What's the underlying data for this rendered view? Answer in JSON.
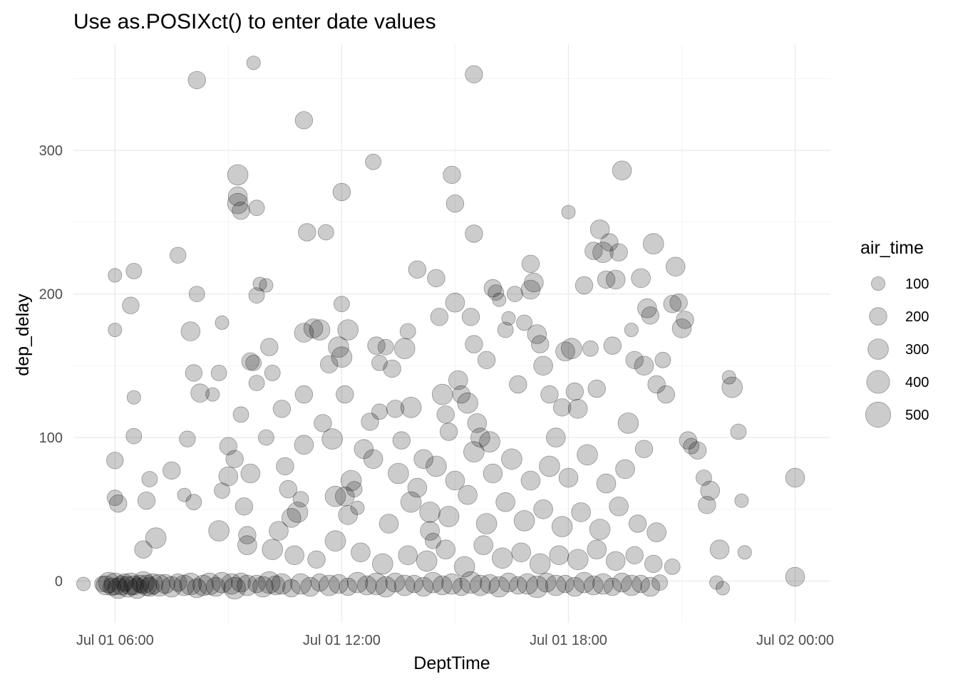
{
  "chart_data": {
    "type": "scatter",
    "title": "Use as.POSIXct() to enter date values",
    "xlabel": "DeptTime",
    "ylabel": "dep_delay",
    "size_legend": {
      "title": "air_time",
      "breaks": [
        100,
        200,
        300,
        400,
        500
      ]
    },
    "x_ticks": [
      "Jul 01 06:00",
      "Jul 01 12:00",
      "Jul 01 18:00",
      "Jul 02 00:00"
    ],
    "y_ticks": [
      0,
      100,
      200,
      300
    ],
    "xlim": [
      "2013-07-01 04:54",
      "2013-07-02 00:56"
    ],
    "ylim": [
      -29,
      374
    ],
    "grid": true,
    "legend_position": "right",
    "point_color": "#000000",
    "x_unit": "time of day (HH:MM, 2013-07-01; values >= 24:00 fall on 2013-07-02)",
    "points": [
      [
        "05:10",
        -2,
        100
      ],
      [
        "05:40",
        -2,
        150
      ],
      [
        "05:45",
        -3,
        250
      ],
      [
        "05:50",
        -1,
        300
      ],
      [
        "05:55",
        -4,
        200
      ],
      [
        "06:00",
        -2,
        350
      ],
      [
        "06:05",
        -5,
        300
      ],
      [
        "06:10",
        -3,
        250
      ],
      [
        "06:15",
        -1,
        200
      ],
      [
        "06:20",
        -4,
        300
      ],
      [
        "06:25",
        -2,
        350
      ],
      [
        "06:30",
        -3,
        250
      ],
      [
        "06:35",
        -5,
        300
      ],
      [
        "06:40",
        -2,
        200
      ],
      [
        "06:45",
        -1,
        350
      ],
      [
        "06:50",
        -3,
        300
      ],
      [
        "06:55",
        -4,
        250
      ],
      [
        "07:00",
        -2,
        300
      ],
      [
        "07:10",
        -3,
        350
      ],
      [
        "07:20",
        -2,
        250
      ],
      [
        "07:30",
        -4,
        300
      ],
      [
        "07:40",
        -1,
        200
      ],
      [
        "07:50",
        -3,
        300
      ],
      [
        "08:00",
        -2,
        350
      ],
      [
        "08:10",
        -5,
        250
      ],
      [
        "08:20",
        -3,
        300
      ],
      [
        "08:30",
        -2,
        350
      ],
      [
        "08:40",
        -4,
        250
      ],
      [
        "08:50",
        -1,
        300
      ],
      [
        "06:00",
        213,
        100
      ],
      [
        "06:00",
        175,
        100
      ],
      [
        "06:00",
        84,
        180
      ],
      [
        "06:00",
        58,
        150
      ],
      [
        "06:05",
        54,
        200
      ],
      [
        "06:30",
        216,
        150
      ],
      [
        "06:25",
        192,
        180
      ],
      [
        "06:30",
        128,
        100
      ],
      [
        "06:30",
        101,
        150
      ],
      [
        "06:55",
        71,
        150
      ],
      [
        "06:50",
        56,
        200
      ],
      [
        "07:05",
        30,
        300
      ],
      [
        "06:45",
        22,
        200
      ],
      [
        "07:30",
        77,
        200
      ],
      [
        "07:40",
        227,
        160
      ],
      [
        "08:10",
        349,
        200
      ],
      [
        "08:10",
        200,
        150
      ],
      [
        "08:00",
        174,
        250
      ],
      [
        "08:05",
        145,
        180
      ],
      [
        "08:15",
        131,
        230
      ],
      [
        "07:55",
        99,
        160
      ],
      [
        "08:05",
        55,
        150
      ],
      [
        "07:50",
        60,
        100
      ],
      [
        "08:45",
        145,
        150
      ],
      [
        "08:50",
        180,
        100
      ],
      [
        "08:35",
        130,
        100
      ],
      [
        "08:50",
        63,
        150
      ],
      [
        "08:45",
        35,
        300
      ],
      [
        "09:00",
        73,
        250
      ],
      [
        "09:00",
        94,
        200
      ],
      [
        "09:15",
        283,
        300
      ],
      [
        "09:15",
        268,
        250
      ],
      [
        "09:15",
        263,
        300
      ],
      [
        "09:20",
        258,
        200
      ],
      [
        "09:20",
        116,
        150
      ],
      [
        "09:30",
        32,
        200
      ],
      [
        "09:25",
        52,
        200
      ],
      [
        "09:35",
        153,
        200
      ],
      [
        "09:40",
        152,
        150
      ],
      [
        "09:45",
        138,
        150
      ],
      [
        "09:45",
        199,
        150
      ],
      [
        "09:50",
        207,
        100
      ],
      [
        "09:45",
        260,
        150
      ],
      [
        "09:40",
        361,
        100
      ],
      [
        "10:00",
        206,
        100
      ],
      [
        "10:05",
        163,
        200
      ],
      [
        "10:10",
        145,
        150
      ],
      [
        "10:25",
        120,
        200
      ],
      [
        "10:35",
        64,
        200
      ],
      [
        "10:20",
        35,
        250
      ],
      [
        "10:40",
        44,
        250
      ],
      [
        "10:50",
        48,
        300
      ],
      [
        "10:55",
        57,
        150
      ],
      [
        "11:00",
        130,
        200
      ],
      [
        "11:00",
        173,
        250
      ],
      [
        "11:05",
        243,
        200
      ],
      [
        "11:00",
        321,
        200
      ],
      [
        "11:15",
        176,
        250
      ],
      [
        "11:25",
        175,
        300
      ],
      [
        "11:35",
        243,
        150
      ],
      [
        "11:40",
        151,
        200
      ],
      [
        "11:45",
        99,
        300
      ],
      [
        "11:50",
        59,
        300
      ],
      [
        "11:55",
        163,
        300
      ],
      [
        "12:00",
        156,
        300
      ],
      [
        "12:00",
        193,
        150
      ],
      [
        "12:00",
        271,
        200
      ],
      [
        "12:05",
        130,
        200
      ],
      [
        "12:10",
        175,
        300
      ],
      [
        "12:05",
        59,
        250
      ],
      [
        "12:10",
        46,
        250
      ],
      [
        "12:20",
        64,
        150
      ],
      [
        "12:25",
        51,
        100
      ],
      [
        "12:35",
        92,
        250
      ],
      [
        "12:45",
        111,
        200
      ],
      [
        "12:50",
        292,
        150
      ],
      [
        "12:55",
        164,
        200
      ],
      [
        "13:00",
        152,
        150
      ],
      [
        "13:00",
        118,
        150
      ],
      [
        "13:10",
        163,
        150
      ],
      [
        "13:20",
        148,
        200
      ],
      [
        "13:25",
        120,
        200
      ],
      [
        "13:35",
        98,
        200
      ],
      [
        "13:40",
        162,
        300
      ],
      [
        "13:45",
        174,
        150
      ],
      [
        "13:50",
        121,
        300
      ],
      [
        "14:00",
        217,
        200
      ],
      [
        "14:10",
        85,
        250
      ],
      [
        "14:20",
        48,
        300
      ],
      [
        "14:25",
        28,
        150
      ],
      [
        "14:30",
        211,
        200
      ],
      [
        "14:35",
        184,
        200
      ],
      [
        "14:40",
        130,
        300
      ],
      [
        "14:45",
        116,
        200
      ],
      [
        "14:50",
        104,
        200
      ],
      [
        "14:55",
        283,
        200
      ],
      [
        "15:00",
        263,
        200
      ],
      [
        "15:00",
        194,
        250
      ],
      [
        "15:05",
        140,
        250
      ],
      [
        "15:10",
        130,
        200
      ],
      [
        "15:20",
        124,
        300
      ],
      [
        "15:25",
        184,
        200
      ],
      [
        "15:30",
        353,
        200
      ],
      [
        "15:30",
        242,
        200
      ],
      [
        "15:30",
        165,
        200
      ],
      [
        "15:35",
        110,
        250
      ],
      [
        "15:40",
        100,
        250
      ],
      [
        "15:50",
        154,
        200
      ],
      [
        "15:55",
        97,
        300
      ],
      [
        "16:00",
        204,
        200
      ],
      [
        "16:05",
        201,
        150
      ],
      [
        "16:10",
        196,
        100
      ],
      [
        "16:20",
        175,
        150
      ],
      [
        "16:25",
        183,
        100
      ],
      [
        "16:35",
        200,
        150
      ],
      [
        "16:40",
        137,
        200
      ],
      [
        "16:50",
        180,
        150
      ],
      [
        "17:00",
        221,
        200
      ],
      [
        "17:05",
        208,
        250
      ],
      [
        "17:00",
        203,
        250
      ],
      [
        "17:10",
        172,
        250
      ],
      [
        "17:15",
        165,
        200
      ],
      [
        "17:20",
        150,
        250
      ],
      [
        "17:30",
        130,
        200
      ],
      [
        "17:40",
        100,
        250
      ],
      [
        "17:50",
        121,
        200
      ],
      [
        "17:55",
        160,
        250
      ],
      [
        "18:00",
        257,
        100
      ],
      [
        "18:05",
        162,
        300
      ],
      [
        "18:10",
        132,
        200
      ],
      [
        "18:15",
        120,
        250
      ],
      [
        "18:25",
        206,
        200
      ],
      [
        "18:35",
        162,
        150
      ],
      [
        "18:40",
        230,
        200
      ],
      [
        "18:45",
        134,
        200
      ],
      [
        "18:50",
        245,
        250
      ],
      [
        "18:55",
        229,
        300
      ],
      [
        "19:00",
        210,
        200
      ],
      [
        "19:05",
        236,
        200
      ],
      [
        "19:10",
        164,
        200
      ],
      [
        "19:15",
        210,
        250
      ],
      [
        "19:20",
        229,
        200
      ],
      [
        "19:25",
        286,
        250
      ],
      [
        "19:35",
        110,
        300
      ],
      [
        "19:40",
        175,
        100
      ],
      [
        "19:45",
        154,
        200
      ],
      [
        "19:55",
        211,
        250
      ],
      [
        "20:00",
        150,
        250
      ],
      [
        "20:05",
        190,
        250
      ],
      [
        "20:10",
        185,
        200
      ],
      [
        "20:15",
        235,
        300
      ],
      [
        "20:20",
        137,
        200
      ],
      [
        "20:30",
        154,
        150
      ],
      [
        "20:35",
        130,
        200
      ],
      [
        "20:45",
        193,
        200
      ],
      [
        "20:50",
        219,
        250
      ],
      [
        "20:55",
        194,
        200
      ],
      [
        "21:00",
        176,
        250
      ],
      [
        "21:05",
        182,
        200
      ],
      [
        "21:10",
        98,
        200
      ],
      [
        "21:15",
        94,
        150
      ],
      [
        "21:25",
        91,
        200
      ],
      [
        "21:35",
        72,
        150
      ],
      [
        "21:40",
        53,
        200
      ],
      [
        "21:45",
        63,
        250
      ],
      [
        "21:55",
        -1,
        100
      ],
      [
        "22:00",
        22,
        250
      ],
      [
        "22:05",
        -5,
        100
      ],
      [
        "22:15",
        142,
        100
      ],
      [
        "22:20",
        135,
        300
      ],
      [
        "22:30",
        104,
        150
      ],
      [
        "22:35",
        56,
        100
      ],
      [
        "22:40",
        20,
        100
      ],
      [
        "24:00",
        72,
        250
      ],
      [
        "24:00",
        3,
        250
      ],
      [
        "09:05",
        -2,
        300
      ],
      [
        "09:10",
        -5,
        350
      ],
      [
        "09:20",
        -1,
        250
      ],
      [
        "09:30",
        -3,
        300
      ],
      [
        "09:45",
        -2,
        200
      ],
      [
        "09:55",
        -4,
        300
      ],
      [
        "10:05",
        -1,
        350
      ],
      [
        "10:15",
        -3,
        250
      ],
      [
        "10:25",
        -2,
        300
      ],
      [
        "10:40",
        -5,
        200
      ],
      [
        "10:55",
        -2,
        300
      ],
      [
        "11:10",
        -4,
        250
      ],
      [
        "11:25",
        -1,
        200
      ],
      [
        "11:40",
        -3,
        300
      ],
      [
        "11:55",
        -2,
        250
      ],
      [
        "12:10",
        -4,
        200
      ],
      [
        "12:25",
        -1,
        300
      ],
      [
        "12:40",
        -3,
        250
      ],
      [
        "12:55",
        -2,
        350
      ],
      [
        "13:10",
        -4,
        300
      ],
      [
        "13:25",
        -1,
        250
      ],
      [
        "13:40",
        -3,
        300
      ],
      [
        "13:55",
        -2,
        200
      ],
      [
        "14:10",
        -4,
        250
      ],
      [
        "14:25",
        -1,
        300
      ],
      [
        "14:40",
        -3,
        250
      ],
      [
        "14:55",
        -2,
        300
      ],
      [
        "15:10",
        -4,
        200
      ],
      [
        "15:25",
        -1,
        350
      ],
      [
        "15:40",
        -3,
        300
      ],
      [
        "15:55",
        -2,
        250
      ],
      [
        "16:10",
        -4,
        300
      ],
      [
        "16:25",
        -1,
        250
      ],
      [
        "16:40",
        -3,
        200
      ],
      [
        "16:55",
        -2,
        300
      ],
      [
        "17:10",
        -4,
        350
      ],
      [
        "17:25",
        -1,
        250
      ],
      [
        "17:40",
        -3,
        300
      ],
      [
        "17:55",
        -2,
        200
      ],
      [
        "18:10",
        -4,
        250
      ],
      [
        "18:25",
        -1,
        300
      ],
      [
        "18:40",
        -3,
        250
      ],
      [
        "18:55",
        -2,
        300
      ],
      [
        "19:10",
        -4,
        200
      ],
      [
        "19:25",
        -1,
        250
      ],
      [
        "19:40",
        -3,
        300
      ],
      [
        "19:55",
        -2,
        200
      ],
      [
        "20:10",
        -4,
        250
      ],
      [
        "20:25",
        -1,
        150
      ],
      [
        "09:30",
        25,
        250
      ],
      [
        "10:10",
        22,
        300
      ],
      [
        "10:45",
        18,
        250
      ],
      [
        "11:20",
        15,
        200
      ],
      [
        "11:50",
        28,
        300
      ],
      [
        "12:30",
        20,
        250
      ],
      [
        "13:05",
        12,
        300
      ],
      [
        "13:45",
        18,
        250
      ],
      [
        "14:15",
        14,
        300
      ],
      [
        "14:45",
        22,
        250
      ],
      [
        "15:15",
        10,
        300
      ],
      [
        "15:45",
        25,
        250
      ],
      [
        "16:15",
        16,
        300
      ],
      [
        "16:45",
        20,
        250
      ],
      [
        "17:15",
        12,
        300
      ],
      [
        "17:45",
        18,
        250
      ],
      [
        "18:15",
        15,
        300
      ],
      [
        "18:45",
        22,
        250
      ],
      [
        "19:15",
        14,
        250
      ],
      [
        "19:45",
        18,
        200
      ],
      [
        "20:15",
        12,
        200
      ],
      [
        "20:45",
        10,
        150
      ],
      [
        "13:15",
        40,
        250
      ],
      [
        "13:50",
        55,
        300
      ],
      [
        "14:20",
        35,
        250
      ],
      [
        "14:50",
        45,
        300
      ],
      [
        "15:20",
        60,
        250
      ],
      [
        "15:50",
        40,
        300
      ],
      [
        "16:20",
        55,
        250
      ],
      [
        "16:50",
        42,
        300
      ],
      [
        "17:20",
        50,
        250
      ],
      [
        "17:50",
        38,
        300
      ],
      [
        "18:20",
        48,
        250
      ],
      [
        "18:50",
        36,
        300
      ],
      [
        "19:20",
        52,
        250
      ],
      [
        "19:50",
        40,
        200
      ],
      [
        "20:20",
        34,
        250
      ],
      [
        "12:15",
        70,
        300
      ],
      [
        "12:50",
        85,
        250
      ],
      [
        "13:30",
        75,
        300
      ],
      [
        "14:00",
        65,
        250
      ],
      [
        "14:30",
        80,
        300
      ],
      [
        "15:00",
        70,
        250
      ],
      [
        "15:30",
        90,
        300
      ],
      [
        "16:00",
        75,
        250
      ],
      [
        "16:30",
        85,
        300
      ],
      [
        "17:00",
        70,
        250
      ],
      [
        "17:30",
        80,
        300
      ],
      [
        "18:00",
        72,
        250
      ],
      [
        "18:30",
        88,
        300
      ],
      [
        "19:00",
        68,
        250
      ],
      [
        "19:30",
        78,
        250
      ],
      [
        "20:00",
        92,
        200
      ],
      [
        "10:30",
        80,
        200
      ],
      [
        "11:00",
        95,
        250
      ],
      [
        "11:30",
        110,
        200
      ],
      [
        "10:00",
        100,
        150
      ],
      [
        "09:35",
        75,
        250
      ],
      [
        "09:10",
        85,
        200
      ]
    ]
  }
}
